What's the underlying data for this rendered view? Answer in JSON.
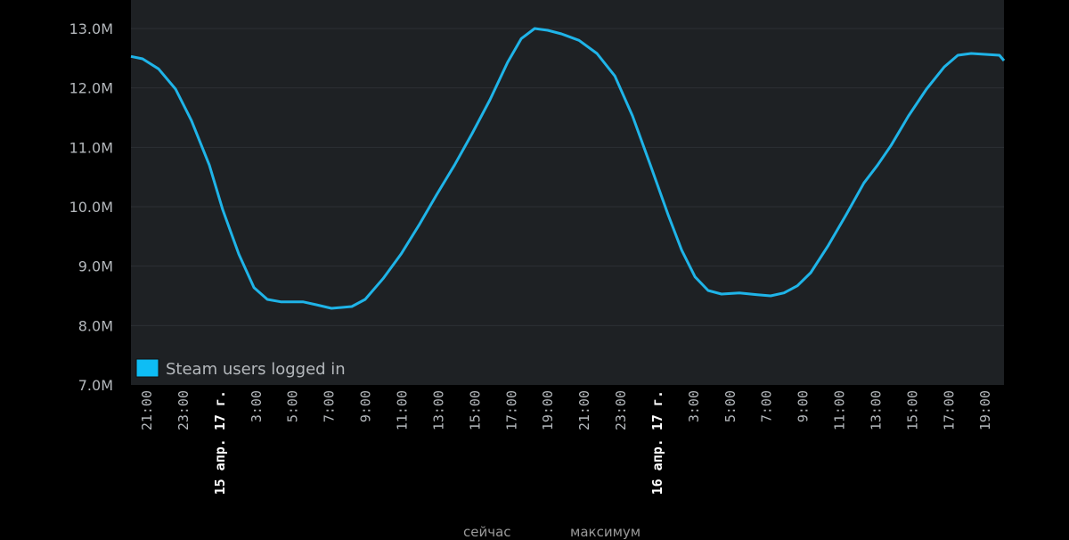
{
  "chart_data": {
    "type": "line",
    "title": "",
    "xlabel": "",
    "ylabel": "",
    "xlim": [
      "2017-04-14T20:07",
      "2017-04-16T20:01"
    ],
    "ylim": [
      7.0,
      13.48
    ],
    "grid": true,
    "legend_position": "bottom-left",
    "background": "#1e2124",
    "y_ticks": [
      {
        "value": 7.0,
        "label": "7.0M"
      },
      {
        "value": 8.0,
        "label": "8.0M"
      },
      {
        "value": 9.0,
        "label": "9.0M"
      },
      {
        "value": 10.0,
        "label": "10.0M"
      },
      {
        "value": 11.0,
        "label": "11.0M"
      },
      {
        "value": 12.0,
        "label": "12.0M"
      },
      {
        "value": 13.0,
        "label": "13.0M"
      }
    ],
    "x_ticks": [
      {
        "time": "2017-04-14T21:00",
        "label": "21:00"
      },
      {
        "time": "2017-04-14T23:00",
        "label": "23:00"
      },
      {
        "time": "2017-04-15T01:00",
        "label": "15 апр. 17 г.",
        "date": true
      },
      {
        "time": "2017-04-15T03:00",
        "label": "3:00"
      },
      {
        "time": "2017-04-15T05:00",
        "label": "5:00"
      },
      {
        "time": "2017-04-15T07:00",
        "label": "7:00"
      },
      {
        "time": "2017-04-15T09:00",
        "label": "9:00"
      },
      {
        "time": "2017-04-15T11:00",
        "label": "11:00"
      },
      {
        "time": "2017-04-15T13:00",
        "label": "13:00"
      },
      {
        "time": "2017-04-15T15:00",
        "label": "15:00"
      },
      {
        "time": "2017-04-15T17:00",
        "label": "17:00"
      },
      {
        "time": "2017-04-15T19:00",
        "label": "19:00"
      },
      {
        "time": "2017-04-15T21:00",
        "label": "21:00"
      },
      {
        "time": "2017-04-15T23:00",
        "label": "23:00"
      },
      {
        "time": "2017-04-16T01:00",
        "label": "16 апр. 17 г.",
        "date": true
      },
      {
        "time": "2017-04-16T03:00",
        "label": "3:00"
      },
      {
        "time": "2017-04-16T05:00",
        "label": "5:00"
      },
      {
        "time": "2017-04-16T07:00",
        "label": "7:00"
      },
      {
        "time": "2017-04-16T09:00",
        "label": "9:00"
      },
      {
        "time": "2017-04-16T11:00",
        "label": "11:00"
      },
      {
        "time": "2017-04-16T13:00",
        "label": "13:00"
      },
      {
        "time": "2017-04-16T15:00",
        "label": "15:00"
      },
      {
        "time": "2017-04-16T17:00",
        "label": "17:00"
      },
      {
        "time": "2017-04-16T19:00",
        "label": "19:00"
      }
    ],
    "series": [
      {
        "name": "Steam users logged in",
        "color": "#1fb4e8",
        "unit": "M",
        "points": [
          [
            "2017-04-14T20:07",
            12.53
          ],
          [
            "2017-04-14T20:45",
            12.49
          ],
          [
            "2017-04-14T21:38",
            12.32
          ],
          [
            "2017-04-14T22:34",
            11.98
          ],
          [
            "2017-04-14T23:26",
            11.45
          ],
          [
            "2017-04-15T00:25",
            10.7
          ],
          [
            "2017-04-15T01:09",
            9.95
          ],
          [
            "2017-04-15T02:02",
            9.2
          ],
          [
            "2017-04-15T02:52",
            8.64
          ],
          [
            "2017-04-15T03:36",
            8.44
          ],
          [
            "2017-04-15T04:20",
            8.4
          ],
          [
            "2017-04-15T05:33",
            8.4
          ],
          [
            "2017-04-15T06:17",
            8.35
          ],
          [
            "2017-04-15T07:07",
            8.29
          ],
          [
            "2017-04-15T08:14",
            8.32
          ],
          [
            "2017-04-15T08:58",
            8.44
          ],
          [
            "2017-04-15T09:57",
            8.79
          ],
          [
            "2017-04-15T10:56",
            9.2
          ],
          [
            "2017-04-15T11:55",
            9.69
          ],
          [
            "2017-04-15T12:53",
            10.2
          ],
          [
            "2017-04-15T13:52",
            10.7
          ],
          [
            "2017-04-15T14:50",
            11.23
          ],
          [
            "2017-04-15T15:49",
            11.8
          ],
          [
            "2017-04-15T16:47",
            12.43
          ],
          [
            "2017-04-15T17:32",
            12.83
          ],
          [
            "2017-04-15T18:16",
            13.0
          ],
          [
            "2017-04-15T18:59",
            12.97
          ],
          [
            "2017-04-15T19:44",
            12.91
          ],
          [
            "2017-04-15T20:42",
            12.8
          ],
          [
            "2017-04-15T21:41",
            12.58
          ],
          [
            "2017-04-15T22:40",
            12.2
          ],
          [
            "2017-04-15T23:38",
            11.53
          ],
          [
            "2017-04-16T00:37",
            10.7
          ],
          [
            "2017-04-16T01:35",
            9.87
          ],
          [
            "2017-04-16T02:20",
            9.27
          ],
          [
            "2017-04-16T03:04",
            8.82
          ],
          [
            "2017-04-16T03:47",
            8.59
          ],
          [
            "2017-04-16T04:31",
            8.53
          ],
          [
            "2017-04-16T05:30",
            8.55
          ],
          [
            "2017-04-16T06:29",
            8.52
          ],
          [
            "2017-04-16T07:13",
            8.5
          ],
          [
            "2017-04-16T07:57",
            8.55
          ],
          [
            "2017-04-16T08:41",
            8.67
          ],
          [
            "2017-04-16T09:25",
            8.89
          ],
          [
            "2017-04-16T10:23",
            9.35
          ],
          [
            "2017-04-16T11:22",
            9.87
          ],
          [
            "2017-04-16T12:20",
            10.4
          ],
          [
            "2017-04-16T13:05",
            10.7
          ],
          [
            "2017-04-16T13:49",
            11.03
          ],
          [
            "2017-04-16T14:47",
            11.53
          ],
          [
            "2017-04-16T15:46",
            11.98
          ],
          [
            "2017-04-16T16:44",
            12.35
          ],
          [
            "2017-04-16T17:29",
            12.55
          ],
          [
            "2017-04-16T18:13",
            12.58
          ],
          [
            "2017-04-16T19:11",
            12.56
          ],
          [
            "2017-04-16T19:46",
            12.55
          ],
          [
            "2017-04-16T20:01",
            12.46
          ]
        ]
      }
    ]
  },
  "footer": {
    "now_label": "сейчас",
    "max_label": "максимум"
  }
}
